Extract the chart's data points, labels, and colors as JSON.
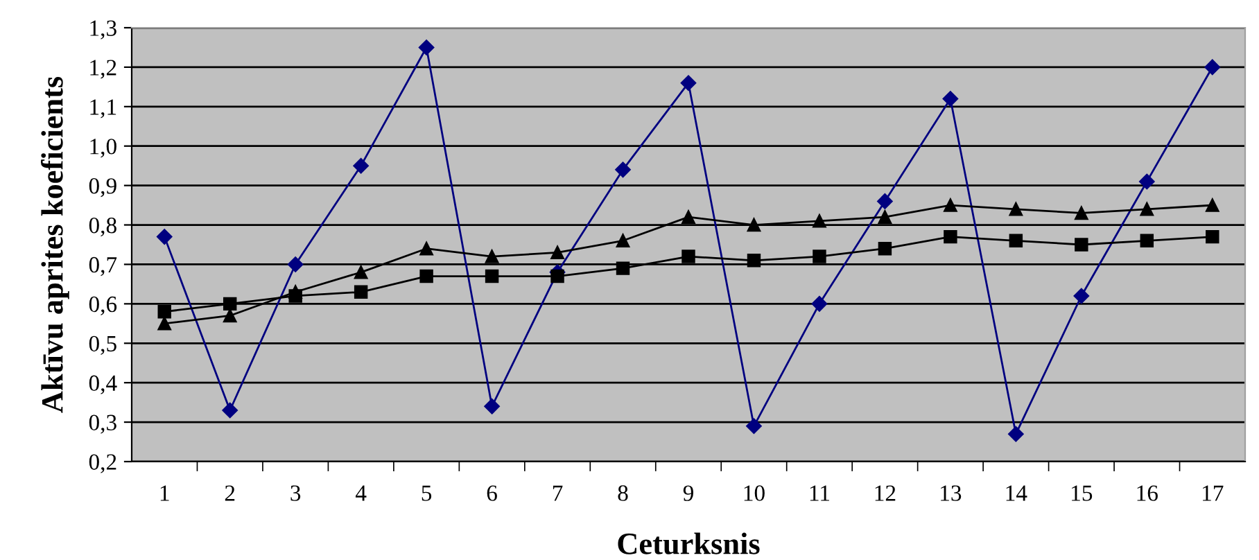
{
  "chart_data": {
    "type": "line",
    "xlabel": "Ceturksnis",
    "ylabel": "Aktīvu aprites koeficients",
    "categories": [
      "1",
      "2",
      "3",
      "4",
      "5",
      "6",
      "7",
      "8",
      "9",
      "10",
      "11",
      "12",
      "13",
      "14",
      "15",
      "16",
      "17"
    ],
    "series": [
      {
        "color": "#000080",
        "marker": "diamond",
        "values": [
          0.77,
          0.33,
          0.7,
          0.95,
          1.25,
          0.34,
          0.68,
          0.94,
          1.16,
          0.29,
          0.6,
          0.86,
          1.12,
          0.27,
          0.62,
          0.91,
          1.2
        ]
      },
      {
        "color": "#000000",
        "marker": "square",
        "values": [
          0.58,
          0.6,
          0.62,
          0.63,
          0.67,
          0.67,
          0.67,
          0.69,
          0.72,
          0.71,
          0.72,
          0.74,
          0.77,
          0.76,
          0.75,
          0.76,
          0.77
        ]
      },
      {
        "color": "#000000",
        "marker": "triangle",
        "values": [
          0.55,
          0.57,
          0.63,
          0.68,
          0.74,
          0.72,
          0.73,
          0.76,
          0.82,
          0.8,
          0.81,
          0.82,
          0.85,
          0.84,
          0.83,
          0.84,
          0.85
        ]
      }
    ],
    "ylim": [
      0.2,
      1.3
    ],
    "yticks": [
      {
        "value": 0.2,
        "label": "0,2"
      },
      {
        "value": 0.3,
        "label": "0,3"
      },
      {
        "value": 0.4,
        "label": "0,4"
      },
      {
        "value": 0.5,
        "label": "0,5"
      },
      {
        "value": 0.6,
        "label": "0,6"
      },
      {
        "value": 0.7,
        "label": "0,7"
      },
      {
        "value": 0.8,
        "label": "0,8"
      },
      {
        "value": 0.9,
        "label": "0,9"
      },
      {
        "value": 1.0,
        "label": "1,0"
      },
      {
        "value": 1.1,
        "label": "1,1"
      },
      {
        "value": 1.2,
        "label": "1,2"
      },
      {
        "value": 1.3,
        "label": "1,3"
      }
    ],
    "grid": "y",
    "line_style": "solid"
  }
}
